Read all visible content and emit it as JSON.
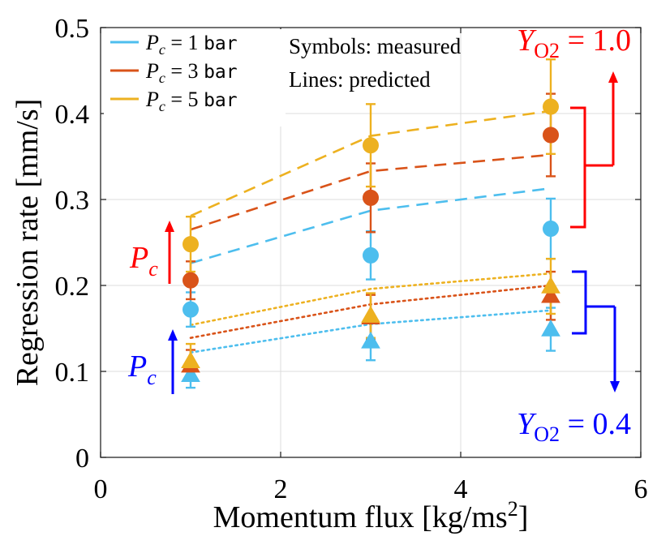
{
  "chart_data": {
    "type": "scatter",
    "xlabel": "Momentum flux [kg/ms",
    "xlabel_sup": "2",
    "xlabel_end": "]",
    "ylabel": "Regression rate [mm/s]",
    "xlim": [
      0,
      6
    ],
    "ylim": [
      0,
      0.5
    ],
    "x_ticks": [
      0,
      2,
      4,
      6
    ],
    "y_ticks": [
      0,
      0.1,
      0.2,
      0.3,
      0.4,
      0.5
    ],
    "x_tick_labels": [
      "0",
      "2",
      "4",
      "6"
    ],
    "y_tick_labels": [
      "0",
      "0.1",
      "0.2",
      "0.3",
      "0.4",
      "0.5"
    ],
    "grid": true,
    "x": [
      1,
      3,
      5
    ],
    "legend": [
      {
        "name": "1",
        "color": "#4DBEEE"
      },
      {
        "name": "3",
        "color": "#D95319"
      },
      {
        "name": "5",
        "color": "#EDB120"
      }
    ],
    "legend_prefix": "P",
    "legend_sub": "c",
    "legend_eq": " = ",
    "legend_unit": "bar",
    "legend_placement": "top-left",
    "notes": [
      "Symbols: measured",
      "Lines: predicted"
    ],
    "series": [
      {
        "pc": "1 bar",
        "yo2": "1.0",
        "color": "#4DBEEE",
        "marker": "circle",
        "line": "dashed",
        "measured": [
          0.172,
          0.235,
          0.266
        ],
        "err": [
          0.02,
          0.028,
          0.035
        ],
        "predicted": [
          0.226,
          0.287,
          0.313
        ]
      },
      {
        "pc": "3 bar",
        "yo2": "1.0",
        "color": "#D95319",
        "marker": "circle",
        "line": "dashed",
        "measured": [
          0.206,
          0.302,
          0.375
        ],
        "err": [
          0.022,
          0.04,
          0.048
        ],
        "predicted": [
          0.265,
          0.333,
          0.352
        ]
      },
      {
        "pc": "5 bar",
        "yo2": "1.0",
        "color": "#EDB120",
        "marker": "circle",
        "line": "dashed",
        "measured": [
          0.248,
          0.363,
          0.408
        ],
        "err": [
          0.032,
          0.048,
          0.055
        ],
        "predicted": [
          0.281,
          0.374,
          0.403
        ]
      },
      {
        "pc": "1 bar",
        "yo2": "0.4",
        "color": "#4DBEEE",
        "marker": "triangle",
        "line": "dotted",
        "measured": [
          0.096,
          0.135,
          0.149
        ],
        "err": [
          0.015,
          0.022,
          0.025
        ],
        "predicted": [
          0.122,
          0.155,
          0.171
        ]
      },
      {
        "pc": "3 bar",
        "yo2": "0.4",
        "color": "#D95319",
        "marker": "triangle",
        "line": "dotted",
        "measured": [
          0.107,
          0.163,
          0.188
        ],
        "err": [
          0.018,
          0.026,
          0.028
        ],
        "predicted": [
          0.139,
          0.178,
          0.2
        ]
      },
      {
        "pc": "5 bar",
        "yo2": "0.4",
        "color": "#EDB120",
        "marker": "triangle",
        "line": "dotted",
        "measured": [
          0.112,
          0.165,
          0.199
        ],
        "err": [
          0.02,
          0.026,
          0.032
        ],
        "predicted": [
          0.154,
          0.196,
          0.214
        ]
      }
    ],
    "annotations": {
      "pc_label": "P",
      "pc_sub": "c",
      "pc_upper_color": "#FF0000",
      "pc_lower_color": "#0000FF",
      "yo2_prefix": "Y",
      "yo2_sub": "O2",
      "yo2_eq": " = ",
      "yo2_high": "1.0",
      "yo2_low": "0.4",
      "yo2_high_color": "#FF0000",
      "yo2_low_color": "#0000FF"
    }
  }
}
